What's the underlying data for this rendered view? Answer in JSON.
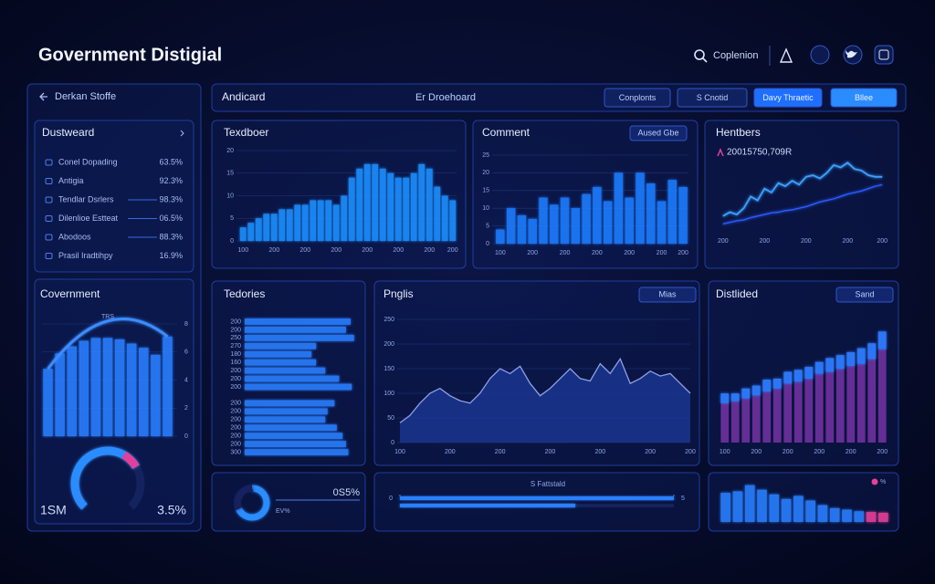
{
  "header": {
    "title": "Government Distigial",
    "search": "Coplenion"
  },
  "sidebar": {
    "back": "Derkan Stoffe",
    "list_title": "Dustweard",
    "items": [
      {
        "label": "Conel Dopading",
        "value": "63.5%"
      },
      {
        "label": "Antigia",
        "value": "92.3%"
      },
      {
        "label": "Tendlar Dsrlers",
        "value": "98.3%"
      },
      {
        "label": "Dilenlioe Estteat",
        "value": "06.5%"
      },
      {
        "label": "Abodoos",
        "value": "88.3%"
      },
      {
        "label": "Prasil Iradtihpy",
        "value": "16.9%"
      }
    ]
  },
  "toolbar": {
    "title": "Andicard",
    "center": "Er Droehoard",
    "buttons": [
      "Conplonts",
      "S Cnotid",
      "Davy Thraetic",
      "Bllee"
    ]
  },
  "chart_data": [
    {
      "type": "bar",
      "title": "Covernment",
      "annotation": "TRS",
      "values": [
        4.8,
        5.9,
        6.4,
        6.8,
        7.0,
        7.0,
        6.9,
        6.6,
        6.3,
        5.8,
        7.1
      ],
      "color": "#2a7fff",
      "ylim": [
        0,
        8
      ],
      "yticks": [
        0,
        2,
        4,
        6,
        8
      ],
      "tick_side": "right"
    },
    {
      "type": "gauge",
      "value": 72,
      "ylim": [
        0,
        100
      ],
      "labels": [
        "1SM",
        "3.5%"
      ],
      "colors": [
        "#2a8cff",
        "#e0409a"
      ]
    },
    {
      "type": "bar",
      "title": "Texdboer",
      "categories": [
        "100",
        null,
        null,
        null,
        "200",
        null,
        null,
        null,
        "200",
        null,
        null,
        null,
        "200",
        null,
        null,
        null,
        "200",
        null,
        null,
        null,
        "200",
        null,
        null,
        null,
        "200",
        null,
        null,
        "200"
      ],
      "values": [
        3,
        4,
        5,
        6,
        6,
        7,
        7,
        8,
        8,
        9,
        9,
        9,
        8,
        10,
        14,
        16,
        17,
        17,
        16,
        15,
        14,
        14,
        15,
        17,
        16,
        12,
        10,
        9
      ],
      "color": "#1f8fff",
      "ylim": [
        0,
        20
      ],
      "yticks": [
        0,
        5,
        10,
        15,
        20
      ],
      "grid": true
    },
    {
      "type": "bar",
      "title": "Comment",
      "button": "Aused Gbe",
      "categories": [
        "100",
        null,
        null,
        "200",
        null,
        null,
        "200",
        null,
        null,
        "200",
        null,
        null,
        "200",
        null,
        null,
        "200",
        null,
        "200"
      ],
      "values": [
        4,
        10,
        8,
        7,
        13,
        11,
        13,
        10,
        14,
        16,
        12,
        20,
        13,
        20,
        17,
        12,
        18,
        16
      ],
      "color": "#1f7bff",
      "ylim": [
        0,
        25
      ],
      "yticks": [
        0,
        5,
        10,
        15,
        20,
        25
      ],
      "grid": true
    },
    {
      "type": "line",
      "title": "Hentbers",
      "subtitle": "20015750,709R",
      "categories": [
        "200",
        null,
        null,
        null,
        null,
        null,
        "200",
        null,
        null,
        null,
        null,
        null,
        "200",
        null,
        null,
        null,
        null,
        null,
        "200",
        null,
        null,
        null,
        null,
        "200"
      ],
      "series": [
        {
          "color": "#3aa0ff",
          "values": [
            20,
            25,
            22,
            30,
            45,
            40,
            55,
            50,
            62,
            58,
            65,
            60,
            70,
            72,
            68,
            75,
            85,
            82,
            88,
            80,
            78,
            72,
            70,
            70
          ]
        },
        {
          "color": "#2a5cff",
          "values": [
            10,
            12,
            14,
            15,
            18,
            20,
            22,
            24,
            25,
            27,
            28,
            30,
            32,
            35,
            38,
            40,
            42,
            45,
            48,
            50,
            52,
            55,
            58,
            60
          ]
        }
      ],
      "ylim": [
        0,
        100
      ]
    },
    {
      "type": "hbar",
      "title": "Tedories",
      "categories": [
        "200",
        "200",
        "250",
        "270",
        "180",
        "160",
        "200",
        "200",
        "200",
        null,
        "200",
        "200",
        "200",
        "200",
        "200",
        "200",
        "300"
      ],
      "values": [
        92,
        88,
        95,
        62,
        58,
        62,
        70,
        82,
        93,
        null,
        78,
        72,
        70,
        80,
        85,
        88,
        90
      ],
      "color": "#2a7fff",
      "xlim": [
        0,
        100
      ]
    },
    {
      "type": "area",
      "title": "Pnglis",
      "button": "Mias",
      "categories": [
        "100",
        null,
        null,
        null,
        null,
        "200",
        null,
        null,
        null,
        null,
        "200",
        null,
        null,
        null,
        null,
        "200",
        null,
        null,
        null,
        null,
        "200",
        null,
        null,
        null,
        null,
        "200",
        null,
        null,
        null,
        "200"
      ],
      "values": [
        40,
        55,
        80,
        100,
        110,
        95,
        85,
        80,
        100,
        130,
        150,
        140,
        155,
        120,
        95,
        110,
        130,
        150,
        130,
        125,
        160,
        140,
        170,
        120,
        130,
        145,
        135,
        140,
        120,
        100
      ],
      "color": "#8ea0e8",
      "fill": "#1c3a9a",
      "ylim": [
        0,
        250
      ],
      "yticks": [
        0,
        50,
        100,
        150,
        200,
        250
      ],
      "grid": true
    },
    {
      "type": "stacked",
      "title": "Distlided",
      "button": "Sand",
      "categories": [
        "100",
        null,
        null,
        "200",
        null,
        null,
        "200",
        null,
        null,
        "200",
        null,
        null,
        "200",
        null,
        null,
        "200"
      ],
      "series": [
        {
          "color": "#6a2f9a",
          "values": [
            40,
            42,
            45,
            48,
            52,
            55,
            60,
            62,
            65,
            70,
            72,
            75,
            78,
            80,
            85,
            95
          ]
        },
        {
          "color": "#2f7cff",
          "values": [
            10,
            8,
            10,
            10,
            12,
            10,
            12,
            12,
            12,
            12,
            14,
            14,
            14,
            16,
            16,
            18
          ]
        }
      ],
      "ylim": [
        0,
        130
      ]
    },
    {
      "type": "donut",
      "values": [
        68,
        32
      ],
      "colors": [
        "#2a8cff",
        "#16245e"
      ],
      "label": "0S5%",
      "sublabel": "EV%"
    },
    {
      "type": "progress",
      "title": "S Fattstald",
      "values": [
        5,
        3.2
      ],
      "color": "#2a7fff",
      "xlim": [
        0,
        5
      ],
      "xticks": [
        0,
        5
      ]
    },
    {
      "type": "bar",
      "legend": {
        "label": "%",
        "color": "#e6409a"
      },
      "values": [
        38,
        40,
        48,
        42,
        36,
        30,
        34,
        28,
        22,
        18,
        16,
        14,
        13,
        12
      ],
      "colors": [
        "#2a7fff",
        "#2a7fff",
        "#2a7fff",
        "#2a7fff",
        "#2a7fff",
        "#2a7fff",
        "#2a7fff",
        "#2a7fff",
        "#2a7fff",
        "#2a7fff",
        "#2a7fff",
        "#2a7fff",
        "#e6409a",
        "#e6409a"
      ],
      "ylim": [
        0,
        50
      ]
    }
  ]
}
